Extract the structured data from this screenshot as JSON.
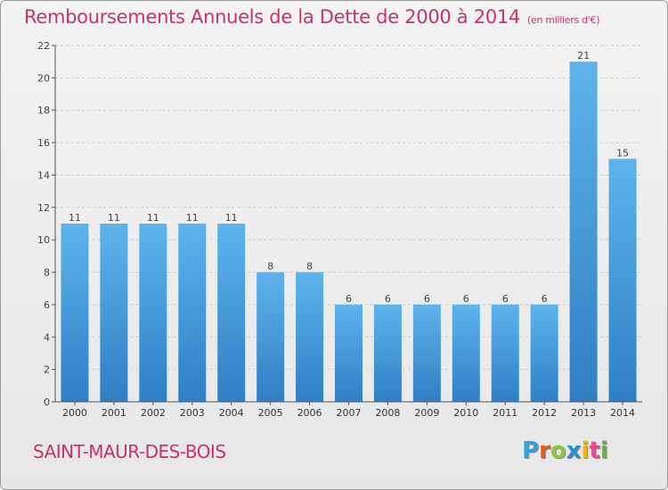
{
  "title": "Remboursements Annuels de la Dette de 2000 à 2014",
  "unit": "(en milliers d'€)",
  "town": "SAINT-MAUR-DES-BOIS",
  "logo": {
    "text": "Proxiti",
    "colors": [
      "#3aa0d8",
      "#e85a1e",
      "#8dc63f",
      "#2a8fd0",
      "#f4b400",
      "#e84a8a",
      "#6ab04c"
    ]
  },
  "chart_data": {
    "type": "bar",
    "categories": [
      "2000",
      "2001",
      "2002",
      "2003",
      "2004",
      "2005",
      "2006",
      "2007",
      "2008",
      "2009",
      "2010",
      "2011",
      "2012",
      "2013",
      "2014"
    ],
    "values": [
      11,
      11,
      11,
      11,
      11,
      8,
      8,
      6,
      6,
      6,
      6,
      6,
      6,
      21,
      15
    ],
    "ylim": [
      0,
      22
    ],
    "yticks": [
      0,
      2,
      4,
      6,
      8,
      10,
      12,
      14,
      16,
      18,
      20,
      22
    ],
    "grid": true,
    "bar_color": "#4a9fe0"
  }
}
